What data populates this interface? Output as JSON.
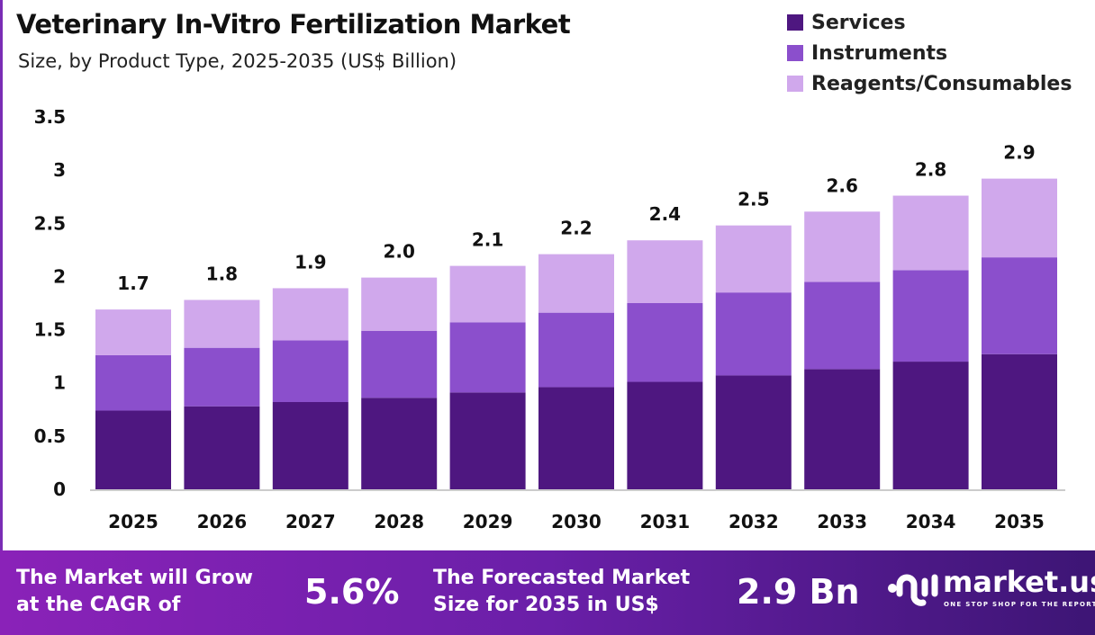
{
  "chart_data": {
    "type": "bar",
    "stacked": true,
    "title": "Veterinary In-Vitro Fertilization Market",
    "subtitle": "Size, by Product Type, 2025-2035 (US$ Billion)",
    "categories": [
      "2025",
      "2026",
      "2027",
      "2028",
      "2029",
      "2030",
      "2031",
      "2032",
      "2033",
      "2034",
      "2035"
    ],
    "series": [
      {
        "name": "Services",
        "color": "#4e1780",
        "values": [
          0.74,
          0.78,
          0.82,
          0.86,
          0.91,
          0.96,
          1.01,
          1.07,
          1.13,
          1.2,
          1.27
        ]
      },
      {
        "name": "Instruments",
        "color": "#8b4fcc",
        "values": [
          0.52,
          0.55,
          0.58,
          0.63,
          0.66,
          0.7,
          0.74,
          0.78,
          0.82,
          0.86,
          0.91
        ]
      },
      {
        "name": "Reagents/Consumables",
        "color": "#d0a8ec",
        "values": [
          0.43,
          0.45,
          0.49,
          0.5,
          0.53,
          0.55,
          0.59,
          0.63,
          0.66,
          0.7,
          0.74
        ]
      }
    ],
    "totals_labels": [
      "1.7",
      "1.8",
      "1.9",
      "2.0",
      "2.1",
      "2.2",
      "2.4",
      "2.5",
      "2.6",
      "2.8",
      "2.9"
    ],
    "yticks": [
      "0",
      "0.5",
      "1",
      "1.5",
      "2",
      "2.5",
      "3",
      "3.5"
    ],
    "ylim": [
      0,
      3.5
    ],
    "grid": false,
    "legend": "top-right"
  },
  "banner": {
    "cagr_text_1": "The Market will Grow",
    "cagr_text_2": "at the CAGR of",
    "cagr_value": "5.6%",
    "forecast_text_1": "The Forecasted Market",
    "forecast_text_2": "Size for 2035 in US$",
    "forecast_value": "2.9 Bn",
    "logo_word": "market.us",
    "logo_tagline": "ONE STOP SHOP FOR THE REPORTS"
  }
}
